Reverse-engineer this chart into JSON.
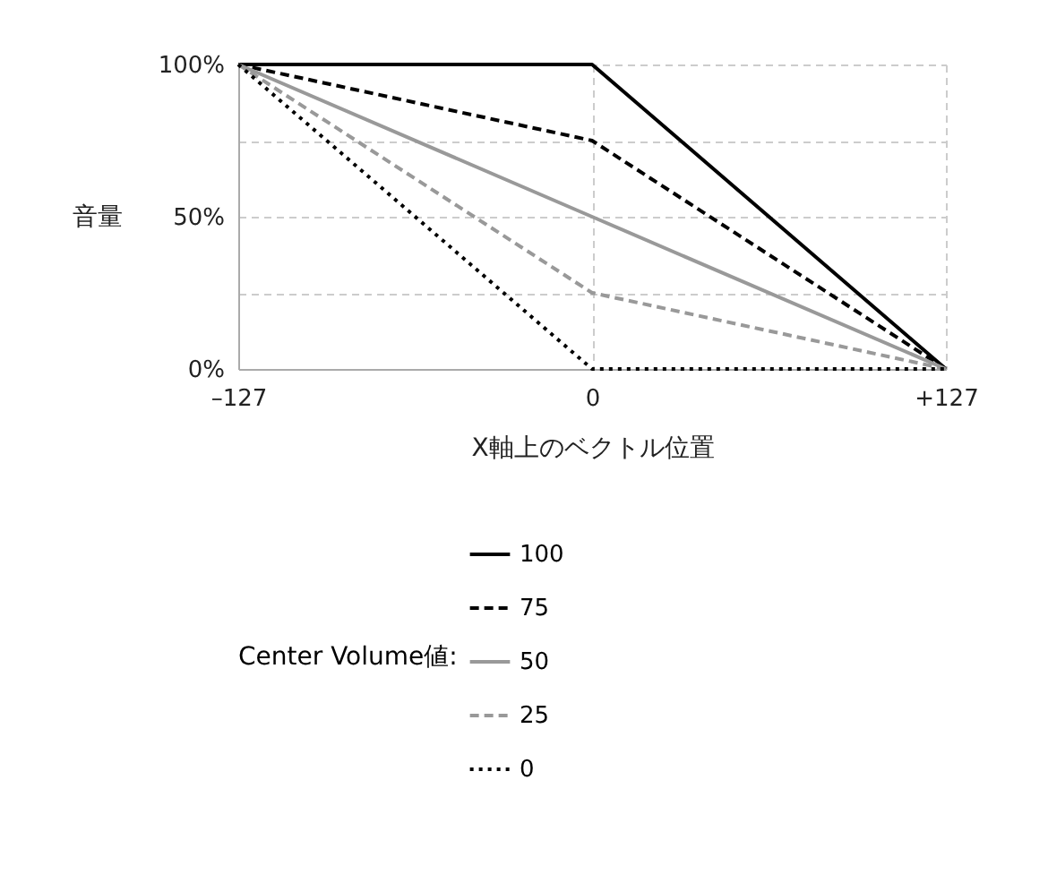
{
  "chart_data": {
    "type": "line",
    "xlabel": "X軸上のベクトル位置",
    "ylabel": "音量",
    "legend_title": "Center Volume値:",
    "x": [
      -127,
      0,
      127
    ],
    "xlim": [
      -127,
      127
    ],
    "xticks": [
      {
        "value": -127,
        "label": "–127"
      },
      0,
      {
        "value": 127,
        "label": "+127"
      }
    ],
    "ylim": [
      0,
      100
    ],
    "yticks": [
      {
        "value": 0,
        "label": "0%"
      },
      {
        "value": 25,
        "label": null
      },
      {
        "value": 50,
        "label": "50%"
      },
      {
        "value": 75,
        "label": null
      },
      {
        "value": 100,
        "label": "100%"
      }
    ],
    "grid": true,
    "legend": "bottom",
    "marker": "none",
    "series": [
      {
        "name": "100",
        "color": "#000000",
        "line_style": "solid",
        "values": [
          100,
          100,
          0
        ]
      },
      {
        "name": "75",
        "color": "#000000",
        "line_style": "dashed",
        "values": [
          100,
          75,
          0
        ]
      },
      {
        "name": "50",
        "color": "#999999",
        "line_style": "solid",
        "values": [
          100,
          50,
          0
        ]
      },
      {
        "name": "25",
        "color": "#999999",
        "line_style": "dashed",
        "values": [
          100,
          25,
          0
        ]
      },
      {
        "name": "0",
        "color": "#000000",
        "line_style": "dotted",
        "values": [
          100,
          0,
          0
        ]
      }
    ]
  }
}
